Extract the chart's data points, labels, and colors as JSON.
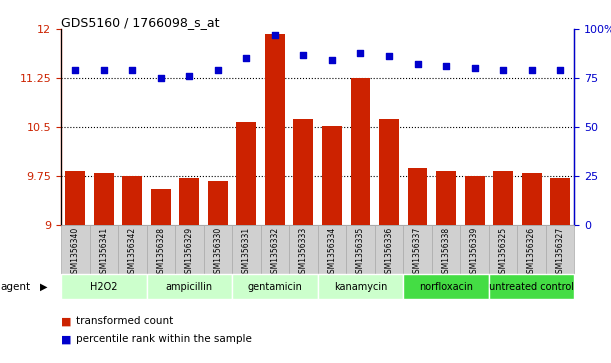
{
  "title": "GDS5160 / 1766098_s_at",
  "samples": [
    "GSM1356340",
    "GSM1356341",
    "GSM1356342",
    "GSM1356328",
    "GSM1356329",
    "GSM1356330",
    "GSM1356331",
    "GSM1356332",
    "GSM1356333",
    "GSM1356334",
    "GSM1356335",
    "GSM1356336",
    "GSM1356337",
    "GSM1356338",
    "GSM1356339",
    "GSM1356325",
    "GSM1356326",
    "GSM1356327"
  ],
  "bar_values": [
    9.83,
    9.8,
    9.75,
    9.55,
    9.72,
    9.68,
    10.57,
    11.92,
    10.63,
    10.52,
    11.25,
    10.63,
    9.88,
    9.83,
    9.75,
    9.83,
    9.8,
    9.72
  ],
  "dot_values": [
    79,
    79,
    79,
    75,
    76,
    79,
    85,
    97,
    87,
    84,
    88,
    86,
    82,
    81,
    80,
    79,
    79,
    79
  ],
  "groups": [
    {
      "label": "H2O2",
      "start": 0,
      "end": 3,
      "color": "#ccffcc"
    },
    {
      "label": "ampicillin",
      "start": 3,
      "end": 6,
      "color": "#ccffcc"
    },
    {
      "label": "gentamicin",
      "start": 6,
      "end": 9,
      "color": "#ccffcc"
    },
    {
      "label": "kanamycin",
      "start": 9,
      "end": 12,
      "color": "#ccffcc"
    },
    {
      "label": "norfloxacin",
      "start": 12,
      "end": 15,
      "color": "#44dd44"
    },
    {
      "label": "untreated control",
      "start": 15,
      "end": 18,
      "color": "#44dd44"
    }
  ],
  "ylim_left": [
    9.0,
    12.0
  ],
  "ylim_right": [
    0,
    100
  ],
  "yticks_left": [
    9.0,
    9.75,
    10.5,
    11.25,
    12.0
  ],
  "ytick_labels_left": [
    "9",
    "9.75",
    "10.5",
    "11.25",
    "12"
  ],
  "yticks_right": [
    0,
    25,
    50,
    75,
    100
  ],
  "ytick_labels_right": [
    "0",
    "25",
    "50",
    "75",
    "100%"
  ],
  "hlines": [
    9.75,
    10.5,
    11.25
  ],
  "bar_color": "#cc2200",
  "dot_color": "#0000cc",
  "bar_width": 0.7,
  "legend_red": "transformed count",
  "legend_blue": "percentile rank within the sample",
  "agent_label": "agent",
  "tick_bg_color": "#d0d0d0",
  "tick_border_color": "#aaaaaa"
}
